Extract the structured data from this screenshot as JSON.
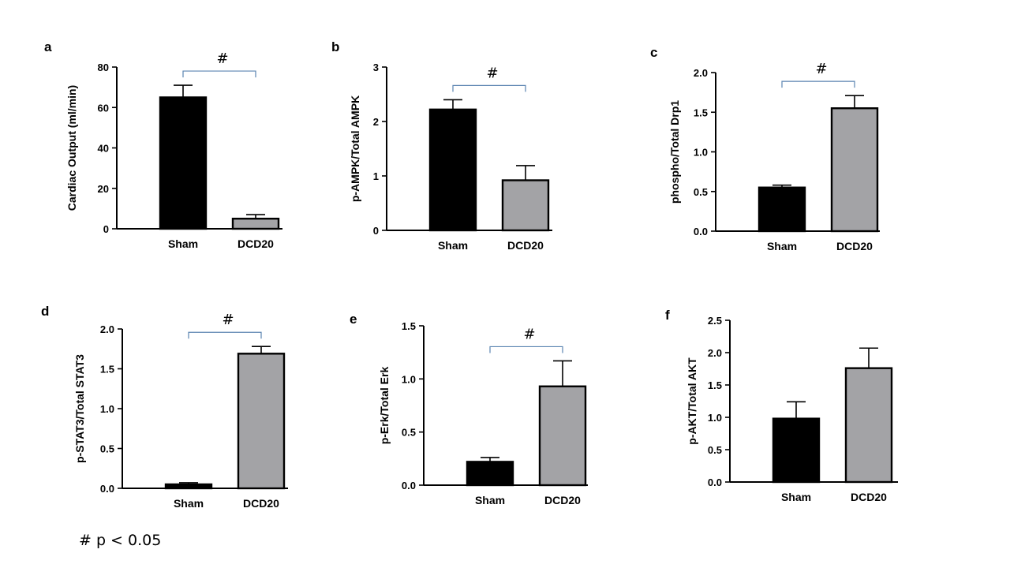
{
  "footnote": "# p < 0.05",
  "colors": {
    "sham": "#000000",
    "dcd20": "#a3a3a6",
    "axis": "#000000",
    "bracket": "#5b84b1"
  },
  "chart_data": [
    {
      "panel": "a",
      "type": "bar",
      "categories": [
        "Sham",
        "DCD20"
      ],
      "values": [
        65,
        5
      ],
      "error": [
        6,
        2
      ],
      "ylabel": "Cardiac Output (ml/min)",
      "ylim": [
        0,
        80
      ],
      "yticks": [
        0,
        20,
        40,
        60,
        80
      ],
      "significance": "#"
    },
    {
      "panel": "b",
      "type": "bar",
      "categories": [
        "Sham",
        "DCD20"
      ],
      "values": [
        2.22,
        0.92
      ],
      "error": [
        0.18,
        0.27
      ],
      "ylabel": "p-AMPK/Total AMPK",
      "ylim": [
        0,
        3
      ],
      "yticks": [
        0,
        1,
        2,
        3
      ],
      "significance": "#"
    },
    {
      "panel": "c",
      "type": "bar",
      "categories": [
        "Sham",
        "DCD20"
      ],
      "values": [
        0.55,
        1.55
      ],
      "error": [
        0.03,
        0.16
      ],
      "ylabel": "phospho/Total Drp1",
      "ylim": [
        0,
        2.0
      ],
      "yticks": [
        "0.0",
        "0.5",
        "1.0",
        "1.5",
        "2.0"
      ],
      "significance": "#"
    },
    {
      "panel": "d",
      "type": "bar",
      "categories": [
        "Sham",
        "DCD20"
      ],
      "values": [
        0.05,
        1.69
      ],
      "error": [
        0.02,
        0.09
      ],
      "ylabel": "p-STAT3/Total STAT3",
      "ylim": [
        0,
        2.0
      ],
      "yticks": [
        "0.0",
        "0.5",
        "1.0",
        "1.5",
        "2.0"
      ],
      "significance": "#"
    },
    {
      "panel": "e",
      "type": "bar",
      "categories": [
        "Sham",
        "DCD20"
      ],
      "values": [
        0.22,
        0.93
      ],
      "error": [
        0.04,
        0.24
      ],
      "ylabel": "p-Erk/Total Erk",
      "ylim": [
        0,
        1.5
      ],
      "yticks": [
        "0.0",
        "0.5",
        "1.0",
        "1.5"
      ],
      "significance": "#"
    },
    {
      "panel": "f",
      "type": "bar",
      "categories": [
        "Sham",
        "DCD20"
      ],
      "values": [
        0.98,
        1.76
      ],
      "error": [
        0.26,
        0.31
      ],
      "ylabel": "p-AKT/Total AKT",
      "ylim": [
        0,
        2.5
      ],
      "yticks": [
        "0.0",
        "0.5",
        "1.0",
        "1.5",
        "2.0",
        "2.5"
      ],
      "significance": ""
    }
  ]
}
